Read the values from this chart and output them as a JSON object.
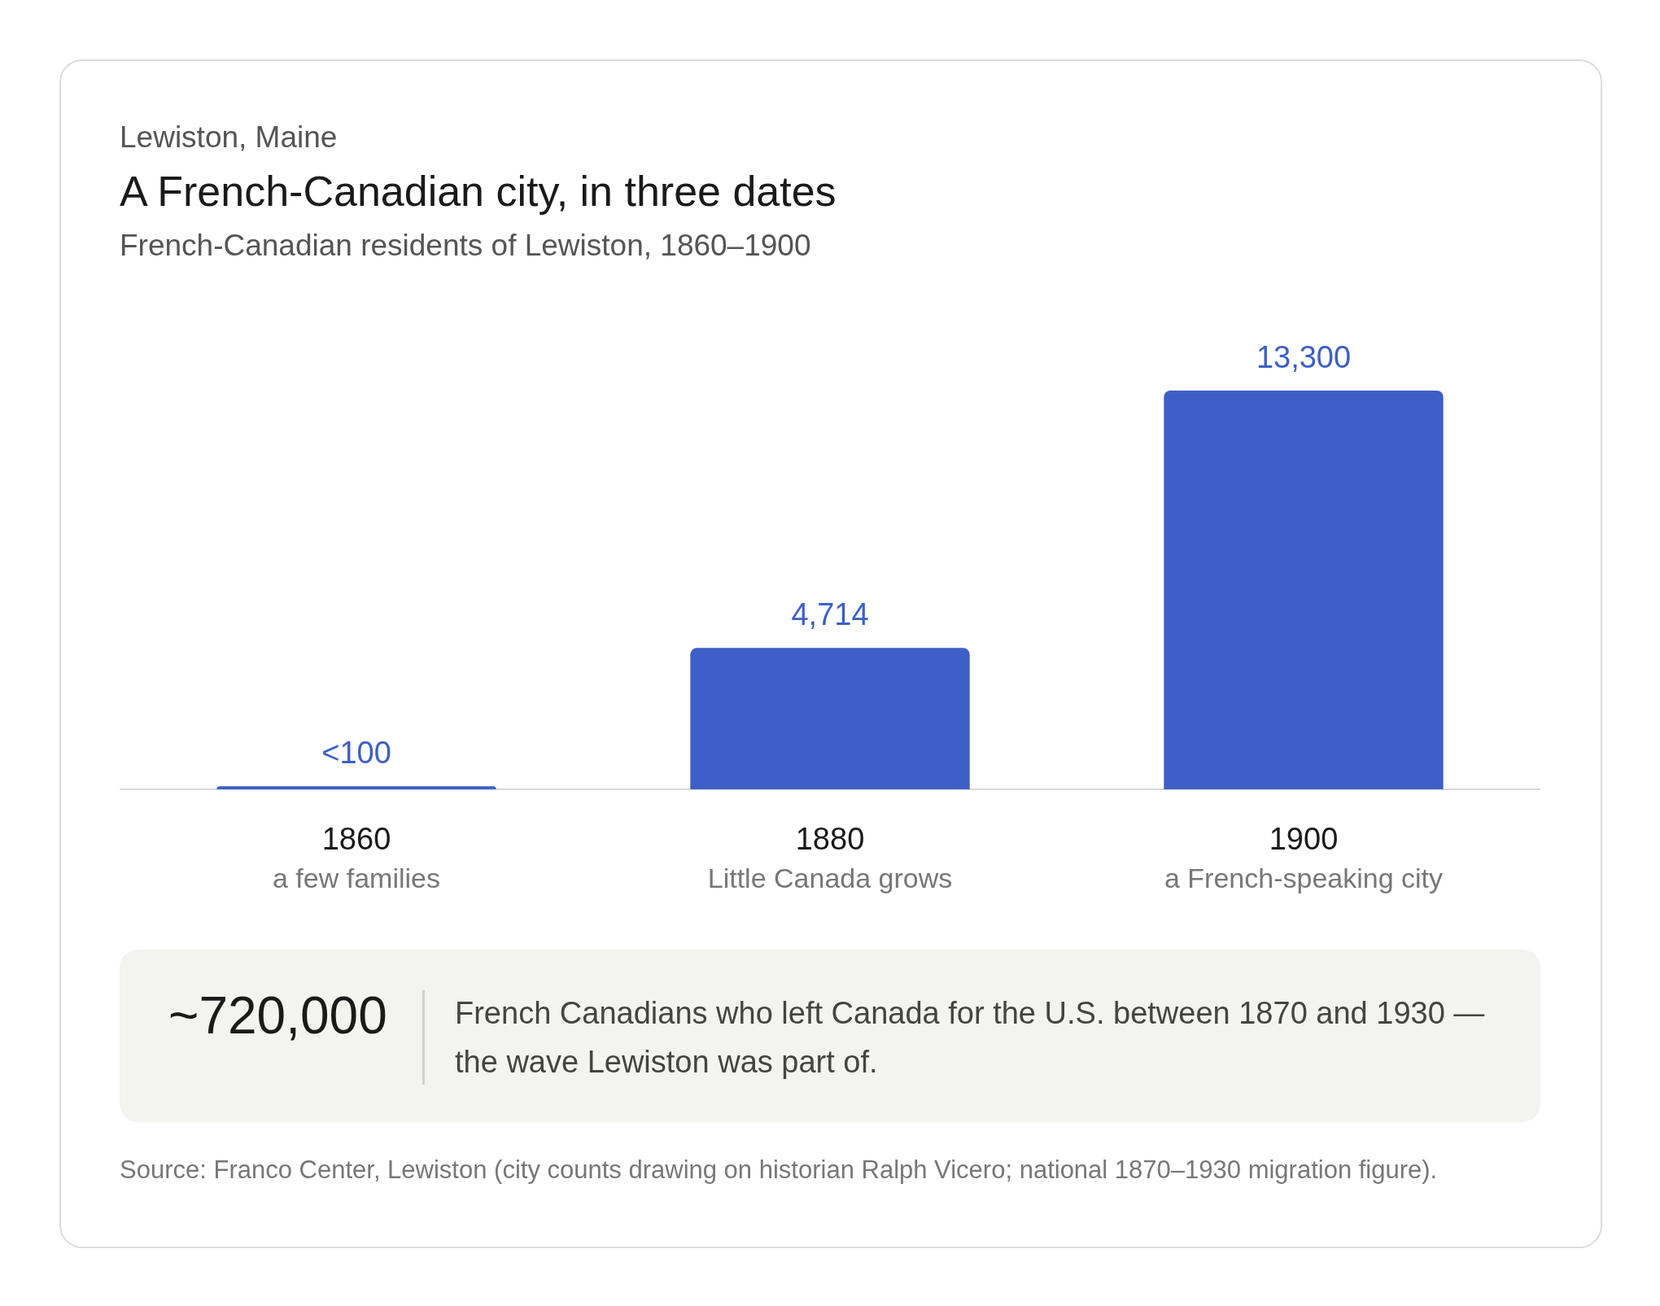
{
  "chart_data": {
    "type": "bar",
    "title": "A French-Canadian city, in three dates",
    "subtitle": "French-Canadian residents of Lewiston, 1860–1900",
    "categories": [
      "1860\na few families",
      "1880\nLittle Canada grows",
      "1900\na French-speaking city"
    ],
    "values": [
      100,
      4714,
      13300
    ],
    "value_labels": [
      "<100",
      "4,714",
      "13,300"
    ],
    "color": "#3d5fc7",
    "annotations": [
      "Lewiston, Maine",
      "~720,000",
      "French Canadians who left Canada for the U.S. between 1870 and 1930 — the wave Lewiston was part of.",
      "Source: Franco Center, Lewiston (city counts drawing on historian Ralph Vicero; national 1870–1930 migration figure)."
    ]
  }
}
